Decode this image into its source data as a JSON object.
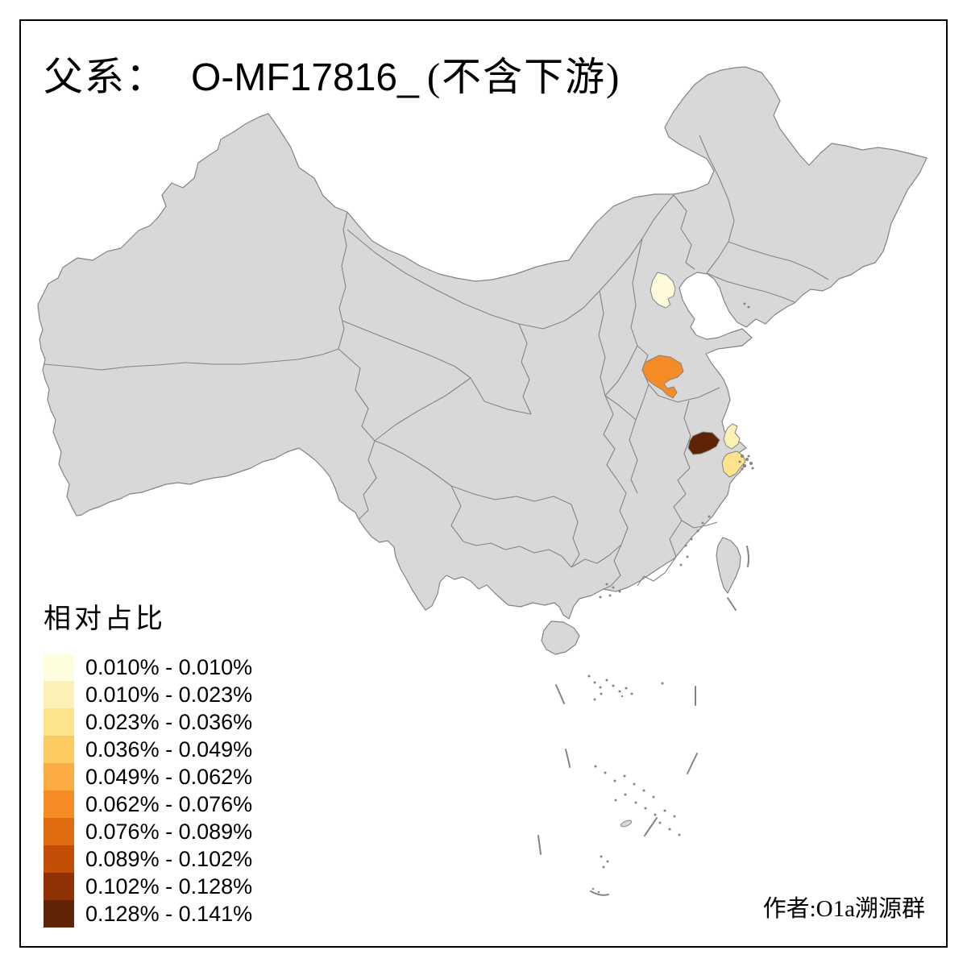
{
  "title": {
    "prefix": "父系：",
    "code": "O-MF17816_",
    "suffix": "(不含下游)"
  },
  "legend": {
    "title": "相对占比",
    "classes": [
      {
        "label": "0.010% - 0.010%",
        "color": "#FEFDDE"
      },
      {
        "label": "0.010% - 0.023%",
        "color": "#FBF1B4"
      },
      {
        "label": "0.023% - 0.036%",
        "color": "#FDE38C"
      },
      {
        "label": "0.036% - 0.049%",
        "color": "#FDC961"
      },
      {
        "label": "0.049% - 0.062%",
        "color": "#FBAB41"
      },
      {
        "label": "0.062% - 0.076%",
        "color": "#F58B24"
      },
      {
        "label": "0.076% - 0.089%",
        "color": "#E06A10"
      },
      {
        "label": "0.089% - 0.102%",
        "color": "#C24D04"
      },
      {
        "label": "0.102% - 0.128%",
        "color": "#8E3105"
      },
      {
        "label": "0.128% - 0.141%",
        "color": "#5F2306"
      }
    ]
  },
  "map": {
    "land_fill": "#D8D8D8",
    "border_color": "#848484",
    "sea_color": "#FFFFFF",
    "frame_color": "#000000",
    "regions": [
      {
        "name": "beijing",
        "class_label": "0.010% - 0.010%",
        "color": "#FCFAD8"
      },
      {
        "name": "jinan-shandong",
        "class_label": "0.062% - 0.076%",
        "color": "#F58B24"
      },
      {
        "name": "south-jiangsu",
        "class_label": "0.128% - 0.141%",
        "color": "#5F2306"
      },
      {
        "name": "nantong",
        "class_label": "0.010% - 0.023%",
        "color": "#FBF1B4"
      },
      {
        "name": "hangzhou-bay-south",
        "class_label": "0.023% - 0.036%",
        "color": "#FDE38C"
      }
    ]
  },
  "credit": {
    "text": "作者:O1a溯源群"
  }
}
